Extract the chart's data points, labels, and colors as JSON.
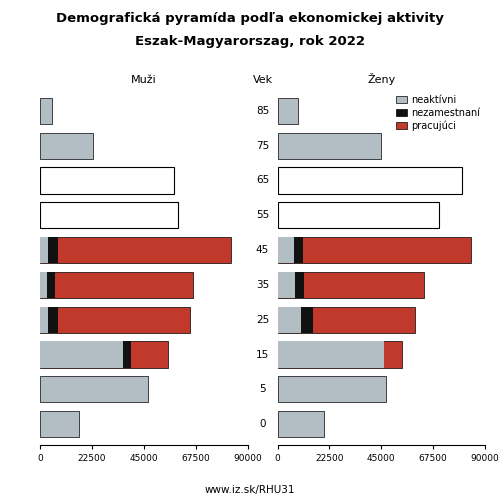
{
  "title_line1": "Demografická pyramída podľa ekonomickej aktivity",
  "title_line2": "Eszak-Magyarorszag, rok 2022",
  "xlabel_left": "Muži",
  "xlabel_center": "Vek",
  "xlabel_right": "Ženy",
  "footer": "www.iz.sk/RHU31",
  "age_labels": [
    "85",
    "75",
    "65",
    "55",
    "45",
    "35",
    "25",
    "15",
    "5",
    "0"
  ],
  "white_ages": [
    "65",
    "55"
  ],
  "male": {
    "neaktivni": [
      5000,
      23000,
      58000,
      60000,
      3500,
      3000,
      3500,
      36000,
      47000,
      17000
    ],
    "nezamestnani": [
      0,
      0,
      0,
      0,
      4500,
      3500,
      4500,
      3500,
      0,
      0
    ],
    "pracujuci": [
      0,
      0,
      0,
      0,
      75000,
      60000,
      57000,
      16000,
      0,
      0
    ]
  },
  "female": {
    "neaktivni": [
      9000,
      45000,
      80000,
      70000,
      7000,
      7500,
      10000,
      46000,
      47000,
      20000
    ],
    "nezamestnani": [
      0,
      0,
      0,
      0,
      4000,
      4000,
      5500,
      0,
      0,
      0
    ],
    "pracujuci": [
      0,
      0,
      0,
      0,
      73000,
      52000,
      44000,
      8000,
      0,
      0
    ]
  },
  "color_neaktivni": "#b2bec3",
  "color_nezamestnani": "#111111",
  "color_pracujuci": "#c0392b",
  "color_white_bar": "#ffffff",
  "xlim": 90000,
  "xtick_vals": [
    0,
    22500,
    45000,
    67500,
    90000
  ],
  "xtick_labels": [
    "0",
    "22500",
    "45000",
    "67500",
    "90000"
  ]
}
